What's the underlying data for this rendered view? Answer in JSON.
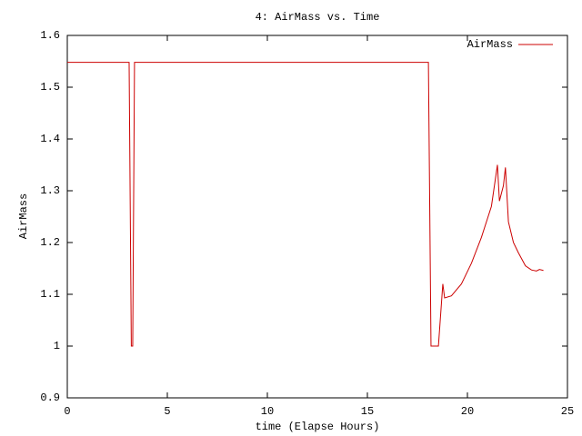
{
  "chart_data": {
    "type": "line",
    "title": "4: AirMass vs. Time",
    "x_label": "time (Elapse Hours)",
    "y_label": "AirMass",
    "xlim": [
      0,
      25
    ],
    "xticks": [
      0,
      5,
      10,
      15,
      20,
      25
    ],
    "ylim": [
      0.9,
      1.6
    ],
    "yticks": [
      0.9,
      1,
      1.1,
      1.2,
      1.3,
      1.4,
      1.5,
      1.6
    ],
    "legend": "top-right",
    "x": [
      0,
      3.09,
      3.2,
      3.27,
      3.36,
      18.05,
      18.18,
      18.55,
      18.77,
      18.86,
      19.2,
      19.7,
      20.2,
      20.7,
      21.2,
      21.5,
      21.6,
      21.8,
      21.9,
      22.05,
      22.3,
      22.55,
      22.9,
      23.2,
      23.45,
      23.6,
      23.8
    ],
    "series": [
      {
        "name": "AirMass",
        "color": "#cc0000",
        "values": [
          1.548,
          1.548,
          1.0,
          1.0,
          1.548,
          1.548,
          1.0,
          1.0,
          1.12,
          1.093,
          1.097,
          1.12,
          1.16,
          1.21,
          1.27,
          1.35,
          1.28,
          1.31,
          1.345,
          1.24,
          1.2,
          1.18,
          1.155,
          1.147,
          1.145,
          1.148,
          1.146
        ]
      }
    ]
  }
}
